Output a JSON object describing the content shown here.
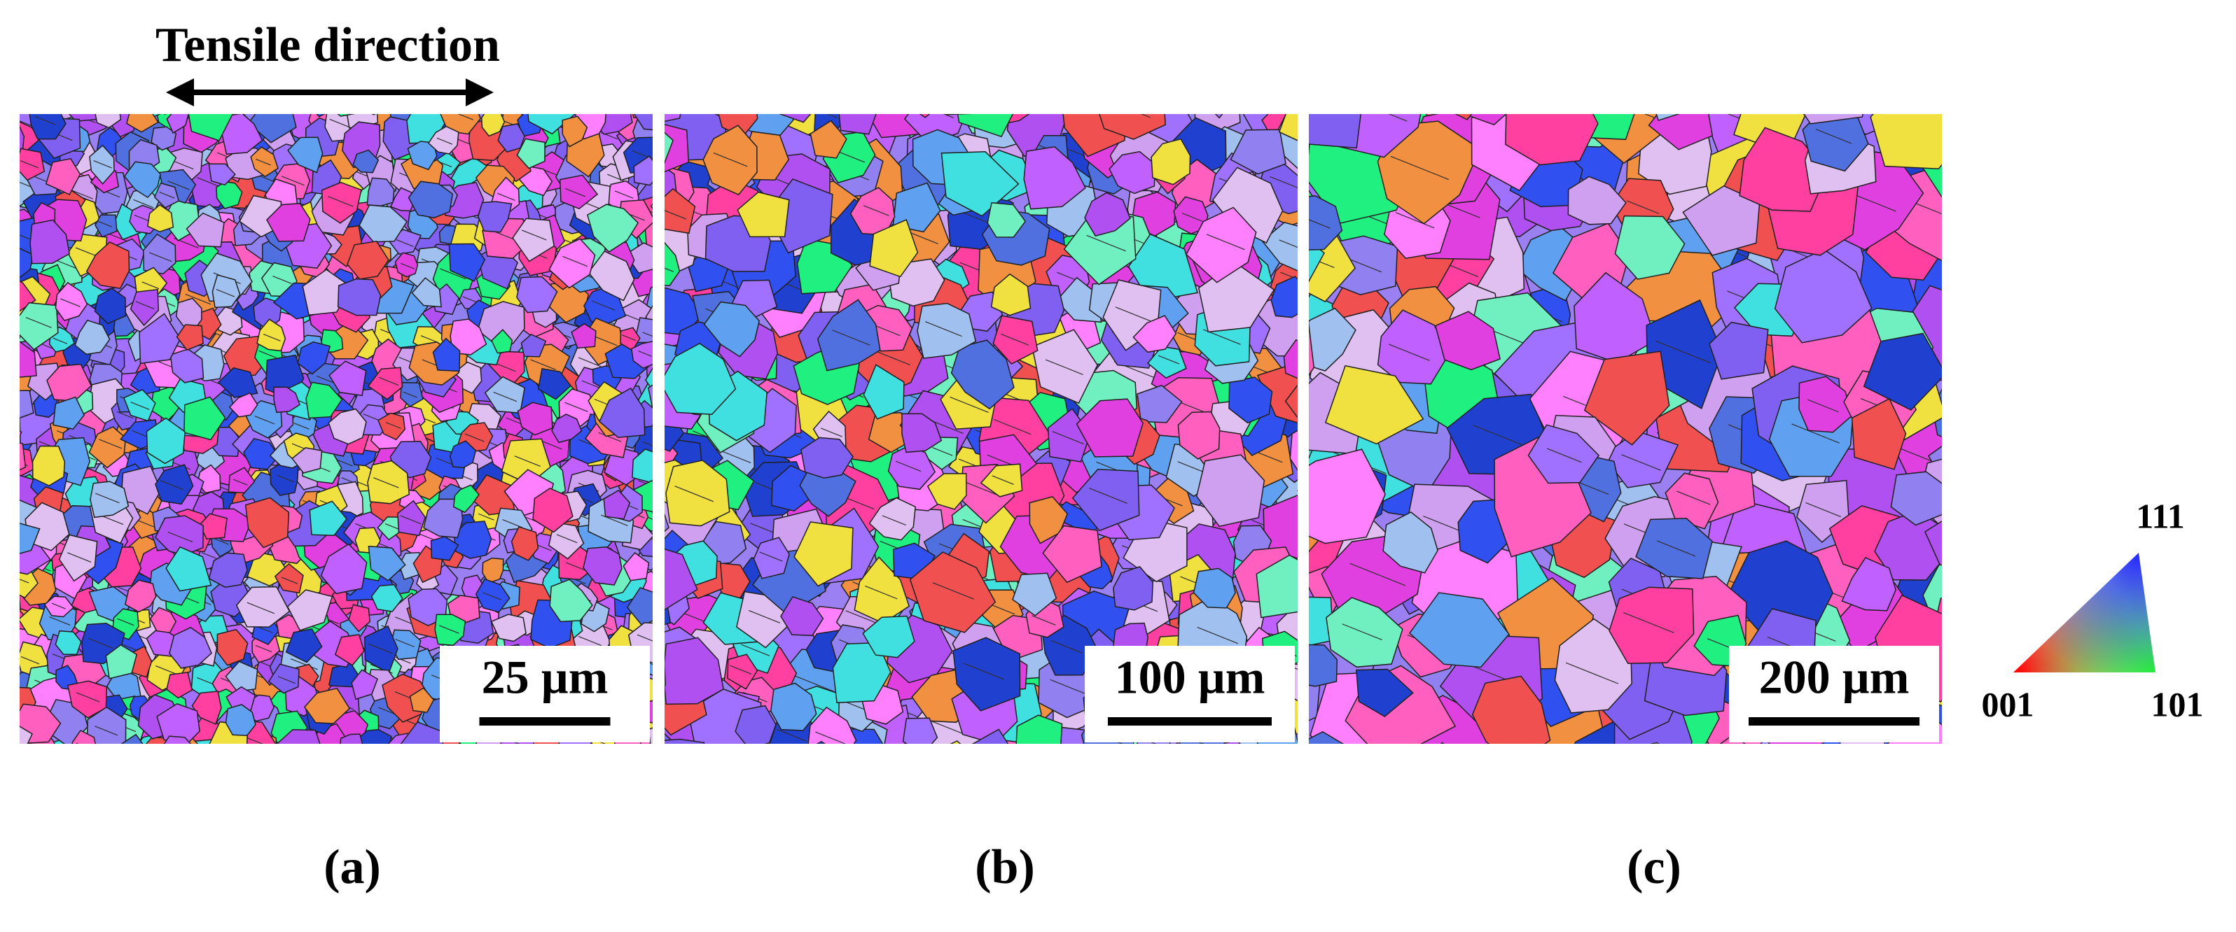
{
  "title": "Tensile direction",
  "panels": [
    {
      "label": "(a)",
      "scale_bar": "25 µm"
    },
    {
      "label": "(b)",
      "scale_bar": "100 µm"
    },
    {
      "label": "(c)",
      "scale_bar": "200 µm"
    }
  ],
  "legend": {
    "top": "111",
    "left": "001",
    "right": "101"
  }
}
